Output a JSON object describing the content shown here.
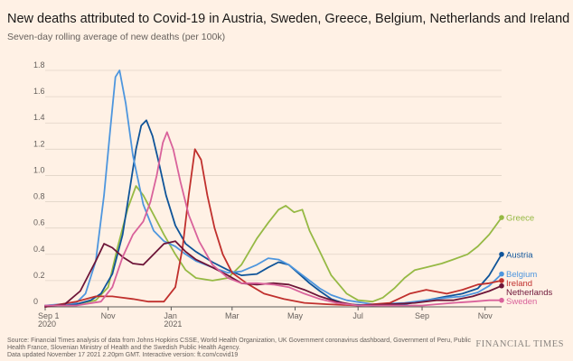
{
  "header": {
    "title": "New deaths attributed to Covid-19 in Austria, Sweden, Greece, Belgium, Netherlands and Ireland",
    "subtitle": "Seven-day rolling average of new deaths (per 100k)"
  },
  "footer": {
    "source": "Source: Financial Times analysis of data from Johns Hopkins CSSE, World Health Organization, UK Government coronavirus dashboard, Government of Peru, Public Health France, Slovenian Ministry of Health and the Swedish Public Health Agency.",
    "updated": "Data updated November 17 2021 2.20pm GMT. Interactive version: ft.com/covid19",
    "brand": "FINANCIAL TIMES"
  },
  "chart_data": {
    "type": "line",
    "ylim": [
      0,
      1.8
    ],
    "yticks": [
      0,
      0.2,
      0.4,
      0.6,
      0.8,
      1.0,
      1.2,
      1.4,
      1.6,
      1.8
    ],
    "ytick_labels": [
      "0",
      "0.2",
      "0.4",
      "0.6",
      "0.8",
      "1.0",
      "1.2",
      "1.4",
      "1.6",
      "1.8"
    ],
    "xlim": [
      "2020-09-01",
      "2021-11-17"
    ],
    "xticks": [
      {
        "date": "2020-09-01",
        "label": "Sep 1",
        "sub": "2020"
      },
      {
        "date": "2020-11-01",
        "label": "Nov",
        "sub": ""
      },
      {
        "date": "2021-01-01",
        "label": "Jan",
        "sub": "2021"
      },
      {
        "date": "2021-03-01",
        "label": "Mar",
        "sub": ""
      },
      {
        "date": "2021-05-01",
        "label": "May",
        "sub": ""
      },
      {
        "date": "2021-07-01",
        "label": "Jul",
        "sub": ""
      },
      {
        "date": "2021-09-01",
        "label": "Sep",
        "sub": ""
      },
      {
        "date": "2021-11-01",
        "label": "Nov",
        "sub": ""
      }
    ],
    "grid": true,
    "series": [
      {
        "name": "Greece",
        "color": "#96b944",
        "points": [
          [
            "2020-09-01",
            0.01
          ],
          [
            "2020-10-01",
            0.02
          ],
          [
            "2020-10-20",
            0.05
          ],
          [
            "2020-11-01",
            0.15
          ],
          [
            "2020-11-10",
            0.45
          ],
          [
            "2020-11-20",
            0.75
          ],
          [
            "2020-11-28",
            0.92
          ],
          [
            "2020-12-05",
            0.85
          ],
          [
            "2020-12-15",
            0.7
          ],
          [
            "2020-12-25",
            0.55
          ],
          [
            "2021-01-05",
            0.4
          ],
          [
            "2021-01-15",
            0.28
          ],
          [
            "2021-01-25",
            0.22
          ],
          [
            "2021-02-10",
            0.2
          ],
          [
            "2021-02-25",
            0.22
          ],
          [
            "2021-03-10",
            0.32
          ],
          [
            "2021-03-25",
            0.52
          ],
          [
            "2021-04-05",
            0.64
          ],
          [
            "2021-04-15",
            0.74
          ],
          [
            "2021-04-22",
            0.77
          ],
          [
            "2021-04-30",
            0.72
          ],
          [
            "2021-05-08",
            0.74
          ],
          [
            "2021-05-15",
            0.58
          ],
          [
            "2021-05-25",
            0.42
          ],
          [
            "2021-06-05",
            0.24
          ],
          [
            "2021-06-20",
            0.1
          ],
          [
            "2021-07-01",
            0.05
          ],
          [
            "2021-07-15",
            0.04
          ],
          [
            "2021-07-25",
            0.07
          ],
          [
            "2021-08-05",
            0.14
          ],
          [
            "2021-08-15",
            0.22
          ],
          [
            "2021-08-25",
            0.28
          ],
          [
            "2021-09-05",
            0.3
          ],
          [
            "2021-09-20",
            0.33
          ],
          [
            "2021-10-01",
            0.36
          ],
          [
            "2021-10-15",
            0.4
          ],
          [
            "2021-10-25",
            0.46
          ],
          [
            "2021-11-05",
            0.55
          ],
          [
            "2021-11-17",
            0.68
          ]
        ]
      },
      {
        "name": "Austria",
        "color": "#0f5499",
        "points": [
          [
            "2020-09-01",
            0.01
          ],
          [
            "2020-10-01",
            0.02
          ],
          [
            "2020-10-15",
            0.05
          ],
          [
            "2020-10-25",
            0.1
          ],
          [
            "2020-11-05",
            0.25
          ],
          [
            "2020-11-15",
            0.55
          ],
          [
            "2020-11-22",
            0.9
          ],
          [
            "2020-11-28",
            1.2
          ],
          [
            "2020-12-03",
            1.38
          ],
          [
            "2020-12-08",
            1.42
          ],
          [
            "2020-12-14",
            1.3
          ],
          [
            "2020-12-20",
            1.1
          ],
          [
            "2020-12-27",
            0.85
          ],
          [
            "2021-01-05",
            0.62
          ],
          [
            "2021-01-15",
            0.48
          ],
          [
            "2021-01-25",
            0.42
          ],
          [
            "2021-02-10",
            0.34
          ],
          [
            "2021-02-25",
            0.28
          ],
          [
            "2021-03-10",
            0.24
          ],
          [
            "2021-03-25",
            0.25
          ],
          [
            "2021-04-05",
            0.3
          ],
          [
            "2021-04-15",
            0.34
          ],
          [
            "2021-04-25",
            0.32
          ],
          [
            "2021-05-05",
            0.25
          ],
          [
            "2021-05-15",
            0.18
          ],
          [
            "2021-05-25",
            0.12
          ],
          [
            "2021-06-05",
            0.06
          ],
          [
            "2021-06-20",
            0.02
          ],
          [
            "2021-07-15",
            0.01
          ],
          [
            "2021-08-15",
            0.02
          ],
          [
            "2021-09-05",
            0.05
          ],
          [
            "2021-09-25",
            0.08
          ],
          [
            "2021-10-10",
            0.1
          ],
          [
            "2021-10-25",
            0.14
          ],
          [
            "2021-11-05",
            0.24
          ],
          [
            "2021-11-17",
            0.4
          ]
        ]
      },
      {
        "name": "Belgium",
        "color": "#4e96de",
        "points": [
          [
            "2020-09-01",
            0.01
          ],
          [
            "2020-10-01",
            0.03
          ],
          [
            "2020-10-10",
            0.1
          ],
          [
            "2020-10-20",
            0.35
          ],
          [
            "2020-10-28",
            0.85
          ],
          [
            "2020-11-03",
            1.35
          ],
          [
            "2020-11-08",
            1.75
          ],
          [
            "2020-11-12",
            1.8
          ],
          [
            "2020-11-18",
            1.55
          ],
          [
            "2020-11-25",
            1.15
          ],
          [
            "2020-12-05",
            0.78
          ],
          [
            "2020-12-15",
            0.58
          ],
          [
            "2020-12-25",
            0.5
          ],
          [
            "2021-01-05",
            0.46
          ],
          [
            "2021-01-15",
            0.4
          ],
          [
            "2021-01-25",
            0.35
          ],
          [
            "2021-02-10",
            0.3
          ],
          [
            "2021-02-25",
            0.26
          ],
          [
            "2021-03-10",
            0.27
          ],
          [
            "2021-03-25",
            0.32
          ],
          [
            "2021-04-05",
            0.37
          ],
          [
            "2021-04-15",
            0.36
          ],
          [
            "2021-04-25",
            0.32
          ],
          [
            "2021-05-05",
            0.26
          ],
          [
            "2021-05-15",
            0.2
          ],
          [
            "2021-05-25",
            0.14
          ],
          [
            "2021-06-05",
            0.09
          ],
          [
            "2021-06-20",
            0.05
          ],
          [
            "2021-07-15",
            0.02
          ],
          [
            "2021-08-15",
            0.03
          ],
          [
            "2021-09-05",
            0.05
          ],
          [
            "2021-09-25",
            0.07
          ],
          [
            "2021-10-10",
            0.08
          ],
          [
            "2021-10-25",
            0.11
          ],
          [
            "2021-11-05",
            0.16
          ],
          [
            "2021-11-17",
            0.25
          ]
        ]
      },
      {
        "name": "Ireland",
        "color": "#c0302d",
        "points": [
          [
            "2020-09-01",
            0.0
          ],
          [
            "2020-10-01",
            0.04
          ],
          [
            "2020-10-20",
            0.08
          ],
          [
            "2020-11-05",
            0.08
          ],
          [
            "2020-11-25",
            0.06
          ],
          [
            "2020-12-10",
            0.04
          ],
          [
            "2020-12-25",
            0.04
          ],
          [
            "2021-01-05",
            0.15
          ],
          [
            "2021-01-12",
            0.45
          ],
          [
            "2021-01-18",
            0.85
          ],
          [
            "2021-01-24",
            1.2
          ],
          [
            "2021-01-30",
            1.12
          ],
          [
            "2021-02-05",
            0.85
          ],
          [
            "2021-02-12",
            0.6
          ],
          [
            "2021-02-20",
            0.4
          ],
          [
            "2021-03-01",
            0.26
          ],
          [
            "2021-03-15",
            0.18
          ],
          [
            "2021-04-01",
            0.1
          ],
          [
            "2021-04-20",
            0.06
          ],
          [
            "2021-05-10",
            0.03
          ],
          [
            "2021-06-01",
            0.02
          ],
          [
            "2021-07-01",
            0.01
          ],
          [
            "2021-08-01",
            0.03
          ],
          [
            "2021-08-20",
            0.1
          ],
          [
            "2021-09-05",
            0.13
          ],
          [
            "2021-09-25",
            0.1
          ],
          [
            "2021-10-10",
            0.13
          ],
          [
            "2021-10-25",
            0.17
          ],
          [
            "2021-11-05",
            0.18
          ],
          [
            "2021-11-17",
            0.2
          ]
        ]
      },
      {
        "name": "Netherlands",
        "color": "#6d1538",
        "points": [
          [
            "2020-09-01",
            0.0
          ],
          [
            "2020-09-20",
            0.02
          ],
          [
            "2020-10-05",
            0.12
          ],
          [
            "2020-10-20",
            0.35
          ],
          [
            "2020-10-28",
            0.48
          ],
          [
            "2020-11-05",
            0.45
          ],
          [
            "2020-11-15",
            0.38
          ],
          [
            "2020-11-25",
            0.33
          ],
          [
            "2020-12-05",
            0.32
          ],
          [
            "2020-12-15",
            0.4
          ],
          [
            "2020-12-25",
            0.48
          ],
          [
            "2021-01-05",
            0.5
          ],
          [
            "2021-01-15",
            0.42
          ],
          [
            "2021-01-25",
            0.36
          ],
          [
            "2021-02-10",
            0.3
          ],
          [
            "2021-02-25",
            0.24
          ],
          [
            "2021-03-10",
            0.18
          ],
          [
            "2021-03-25",
            0.17
          ],
          [
            "2021-04-10",
            0.18
          ],
          [
            "2021-04-25",
            0.17
          ],
          [
            "2021-05-10",
            0.13
          ],
          [
            "2021-05-25",
            0.08
          ],
          [
            "2021-06-10",
            0.04
          ],
          [
            "2021-07-01",
            0.01
          ],
          [
            "2021-08-01",
            0.02
          ],
          [
            "2021-08-25",
            0.03
          ],
          [
            "2021-09-15",
            0.05
          ],
          [
            "2021-10-01",
            0.05
          ],
          [
            "2021-10-20",
            0.08
          ],
          [
            "2021-11-05",
            0.12
          ],
          [
            "2021-11-17",
            0.16
          ]
        ]
      },
      {
        "name": "Sweden",
        "color": "#d9629b",
        "points": [
          [
            "2020-09-01",
            0.01
          ],
          [
            "2020-10-01",
            0.01
          ],
          [
            "2020-10-25",
            0.04
          ],
          [
            "2020-11-05",
            0.15
          ],
          [
            "2020-11-15",
            0.38
          ],
          [
            "2020-11-25",
            0.55
          ],
          [
            "2020-12-05",
            0.65
          ],
          [
            "2020-12-12",
            0.8
          ],
          [
            "2020-12-18",
            1.0
          ],
          [
            "2020-12-24",
            1.25
          ],
          [
            "2020-12-28",
            1.33
          ],
          [
            "2021-01-03",
            1.2
          ],
          [
            "2021-01-10",
            0.95
          ],
          [
            "2021-01-18",
            0.7
          ],
          [
            "2021-01-28",
            0.5
          ],
          [
            "2021-02-10",
            0.32
          ],
          [
            "2021-02-25",
            0.22
          ],
          [
            "2021-03-10",
            0.18
          ],
          [
            "2021-03-25",
            0.18
          ],
          [
            "2021-04-10",
            0.17
          ],
          [
            "2021-04-25",
            0.15
          ],
          [
            "2021-05-10",
            0.1
          ],
          [
            "2021-05-25",
            0.06
          ],
          [
            "2021-06-10",
            0.03
          ],
          [
            "2021-07-01",
            0.01
          ],
          [
            "2021-09-01",
            0.01
          ],
          [
            "2021-10-01",
            0.03
          ],
          [
            "2021-10-20",
            0.04
          ],
          [
            "2021-11-05",
            0.05
          ],
          [
            "2021-11-17",
            0.05
          ]
        ]
      }
    ]
  }
}
